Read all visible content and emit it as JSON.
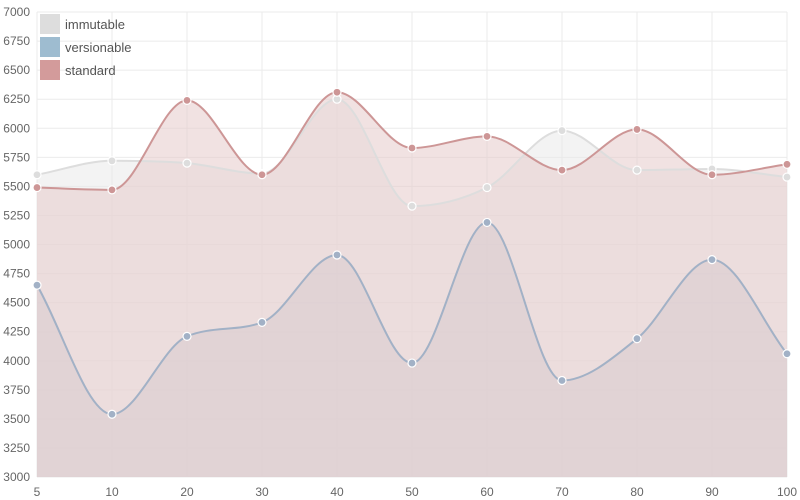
{
  "chart_data": {
    "type": "area",
    "x": [
      5,
      10,
      20,
      30,
      40,
      50,
      60,
      70,
      80,
      90,
      100
    ],
    "ylim": [
      3000,
      7000
    ],
    "yticks": [
      3000,
      3250,
      3500,
      3750,
      4000,
      4250,
      4500,
      4750,
      5000,
      5250,
      5500,
      5750,
      6000,
      6250,
      6500,
      6750,
      7000
    ],
    "grid": true,
    "legend_position": "top-left",
    "title": "",
    "xlabel": "",
    "ylabel": "",
    "series": [
      {
        "name": "immutable",
        "values": [
          5600,
          5720,
          5700,
          5610,
          6250,
          5330,
          5490,
          5980,
          5640,
          5650,
          5580
        ],
        "line_color": "#dddddd",
        "fill_color": "#e9e9e9",
        "legend_color": "#dddddd"
      },
      {
        "name": "versionable",
        "values": [
          4650,
          3540,
          4210,
          4330,
          4910,
          3980,
          5190,
          3830,
          4190,
          4870,
          4060
        ],
        "line_color": "#a2b1c6",
        "fill_color": "#c7cbd5",
        "legend_color": "#9ebcd0"
      },
      {
        "name": "standard",
        "values": [
          5490,
          5470,
          6240,
          5600,
          6310,
          5830,
          5930,
          5640,
          5990,
          5600,
          5690
        ],
        "line_color": "#cd9696",
        "fill_color": "#e6cbcb",
        "legend_color": "#d39b9b"
      }
    ]
  }
}
